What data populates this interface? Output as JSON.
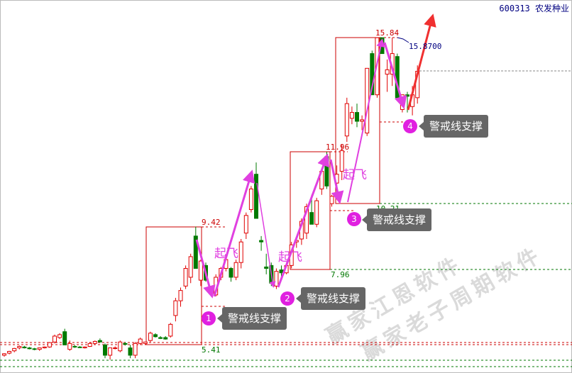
{
  "header": {
    "stock": "600313 农发种业"
  },
  "chart_data": {
    "type": "candlestick",
    "title": "600313 农发种业",
    "candle_fields": [
      "open",
      "high",
      "low",
      "close"
    ],
    "ylim": [
      4.8,
      16.5
    ],
    "price_labels": {
      "low_1": "5.41",
      "high_1": "9.42",
      "low_2": "7.96",
      "high_2": "11.96",
      "low_3": "10.21",
      "high_3": "15.84",
      "target": "15.8700"
    },
    "candles": [
      [
        5.05,
        5.12,
        5.0,
        5.1
      ],
      [
        5.12,
        5.2,
        5.08,
        5.18
      ],
      [
        5.2,
        5.3,
        5.15,
        5.28
      ],
      [
        5.3,
        5.38,
        5.25,
        5.35
      ],
      [
        5.33,
        5.37,
        5.28,
        5.3
      ],
      [
        5.3,
        5.33,
        5.25,
        5.27
      ],
      [
        5.27,
        5.3,
        5.22,
        5.26
      ],
      [
        5.25,
        5.3,
        5.2,
        5.3
      ],
      [
        5.3,
        5.35,
        5.28,
        5.33
      ],
      [
        5.33,
        5.5,
        5.3,
        5.48
      ],
      [
        5.5,
        5.75,
        5.45,
        5.7
      ],
      [
        5.65,
        5.8,
        5.6,
        5.75
      ],
      [
        5.85,
        5.95,
        5.4,
        5.4
      ],
      [
        5.25,
        5.55,
        5.2,
        5.45
      ],
      [
        5.35,
        5.4,
        5.3,
        5.33
      ],
      [
        5.33,
        5.36,
        5.3,
        5.32
      ],
      [
        5.3,
        5.35,
        5.28,
        5.33
      ],
      [
        5.35,
        5.5,
        5.33,
        5.45
      ],
      [
        5.45,
        5.55,
        5.4,
        5.52
      ],
      [
        5.55,
        5.62,
        5.5,
        5.5
      ],
      [
        5.4,
        5.45,
        4.95,
        5.05
      ],
      [
        5.05,
        5.3,
        4.9,
        5.3
      ],
      [
        5.3,
        5.35,
        5.25,
        5.3
      ],
      [
        5.2,
        5.55,
        5.15,
        5.5
      ],
      [
        5.45,
        5.5,
        5.38,
        5.42
      ],
      [
        5.3,
        5.4,
        4.95,
        5.05
      ],
      [
        5.05,
        5.5,
        4.95,
        5.45
      ],
      [
        5.45,
        5.65,
        5.4,
        5.6
      ],
      [
        5.45,
        5.5,
        5.4,
        5.5
      ],
      [
        5.55,
        5.85,
        5.5,
        5.8
      ],
      [
        5.75,
        5.8,
        5.65,
        5.68
      ],
      [
        5.65,
        5.7,
        5.6,
        5.62
      ],
      [
        5.65,
        5.7,
        5.58,
        5.6
      ],
      [
        5.7,
        6.15,
        5.65,
        6.1
      ],
      [
        6.4,
        7.0,
        6.2,
        6.9
      ],
      [
        6.9,
        7.35,
        6.7,
        7.25
      ],
      [
        7.4,
        8.1,
        7.3,
        8.0
      ],
      [
        7.7,
        8.5,
        7.5,
        8.4
      ],
      [
        9.1,
        9.42,
        8.0,
        8.0
      ],
      [
        7.6,
        8.3,
        7.4,
        8.25
      ],
      [
        8.1,
        8.2,
        7.55,
        7.6
      ],
      [
        7.3,
        7.4,
        7.1,
        7.15
      ],
      [
        7.1,
        7.8,
        7.05,
        7.7
      ],
      [
        7.7,
        8.05,
        7.6,
        8.0
      ],
      [
        8.0,
        8.4,
        7.9,
        8.3
      ],
      [
        8.0,
        8.05,
        7.55,
        7.7
      ],
      [
        7.7,
        8.3,
        7.6,
        8.2
      ],
      [
        8.2,
        9.0,
        8.0,
        8.9
      ],
      [
        9.2,
        9.9,
        9.0,
        9.8
      ],
      [
        10.0,
        10.8,
        9.9,
        10.7
      ],
      [
        11.2,
        11.6,
        9.7,
        9.7
      ],
      [
        8.95,
        9.1,
        8.6,
        8.9
      ],
      [
        8.05,
        8.5,
        7.8,
        8.0
      ],
      [
        8.1,
        8.2,
        7.4,
        7.5
      ],
      [
        7.4,
        8.0,
        7.3,
        7.9
      ],
      [
        7.95,
        8.1,
        7.7,
        7.85
      ],
      [
        7.85,
        8.2,
        7.8,
        8.1
      ],
      [
        8.1,
        8.9,
        8.0,
        8.8
      ],
      [
        8.9,
        9.0,
        8.7,
        8.95
      ],
      [
        9.0,
        9.7,
        8.8,
        9.6
      ],
      [
        9.2,
        10.2,
        9.0,
        10.1
      ],
      [
        9.9,
        10.5,
        9.5,
        9.5
      ],
      [
        9.5,
        10.4,
        9.4,
        10.3
      ],
      [
        10.7,
        11.4,
        10.5,
        11.3
      ],
      [
        11.8,
        11.96,
        10.7,
        10.8
      ],
      [
        10.2,
        10.5,
        10.1,
        10.45
      ],
      [
        10.9,
        11.5,
        10.7,
        11.2
      ],
      [
        11.3,
        12.2,
        11.0,
        12.0
      ],
      [
        12.5,
        13.8,
        12.3,
        13.6
      ],
      [
        13.1,
        13.5,
        12.9,
        13.3
      ],
      [
        13.3,
        13.6,
        12.8,
        13.0
      ],
      [
        13.0,
        13.2,
        12.7,
        13.05
      ],
      [
        12.6,
        14.8,
        12.5,
        14.8
      ],
      [
        15.3,
        15.4,
        13.9,
        13.9
      ],
      [
        13.9,
        15.84,
        13.8,
        15.84
      ],
      [
        15.84,
        15.84,
        15.3,
        15.3
      ],
      [
        14.6,
        15.1,
        14.0,
        14.75
      ],
      [
        14.6,
        15.84,
        14.2,
        15.3
      ],
      [
        15.2,
        15.3,
        13.8,
        13.8
      ],
      [
        13.4,
        13.9,
        13.3,
        13.9
      ],
      [
        13.9,
        14.0,
        13.3,
        13.85
      ],
      [
        13.5,
        14.2,
        13.2,
        13.9
      ],
      [
        13.8,
        14.9,
        13.6,
        14.7
      ]
    ],
    "colors": {
      "up": "#e00000",
      "down": "#007a00",
      "arrow": "#e040e0",
      "target_arrow": "#f03030"
    }
  },
  "annotations": {
    "support_label": "警戒线支撑",
    "takeoff_label": "起飞",
    "badges": [
      "1",
      "2",
      "3",
      "4"
    ]
  },
  "watermark": {
    "line1": "赢家江恩软件",
    "line2": "赢家老子周期软件"
  }
}
